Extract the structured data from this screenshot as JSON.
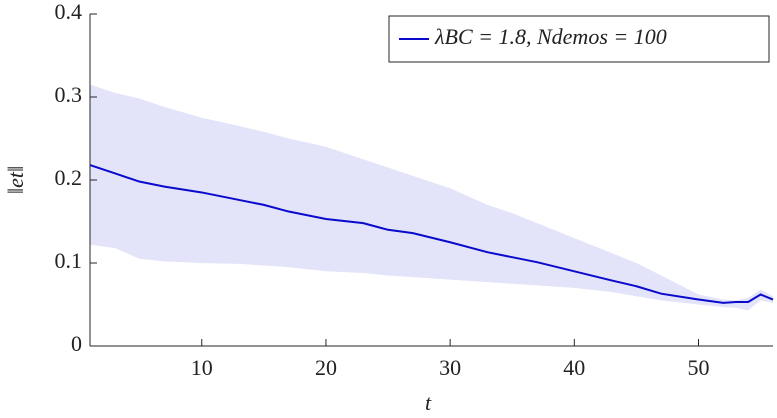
{
  "chart_data": {
    "type": "line",
    "x_label": "t",
    "y_label": "‖et‖",
    "x": [
      1,
      3,
      5,
      7,
      10,
      13,
      15,
      17,
      20,
      23,
      25,
      27,
      30,
      33,
      35,
      37,
      40,
      43,
      45,
      47,
      50,
      52,
      53,
      54,
      55,
      56
    ],
    "series": [
      {
        "name": "λBC = 1.8,  Ndemos = 100",
        "color": "#0a0acc",
        "band_color": "#e3e3fa",
        "values": [
          0.218,
          0.208,
          0.198,
          0.192,
          0.185,
          0.176,
          0.17,
          0.162,
          0.153,
          0.148,
          0.14,
          0.136,
          0.125,
          0.113,
          0.107,
          0.101,
          0.09,
          0.079,
          0.072,
          0.063,
          0.056,
          0.052,
          0.053,
          0.053,
          0.062,
          0.056
        ],
        "upper": [
          0.315,
          0.305,
          0.298,
          0.288,
          0.275,
          0.265,
          0.258,
          0.25,
          0.24,
          0.225,
          0.215,
          0.205,
          0.19,
          0.17,
          0.16,
          0.148,
          0.13,
          0.112,
          0.1,
          0.085,
          0.062,
          0.056,
          0.055,
          0.058,
          0.068,
          0.06
        ],
        "lower": [
          0.122,
          0.118,
          0.105,
          0.102,
          0.1,
          0.099,
          0.097,
          0.095,
          0.09,
          0.088,
          0.085,
          0.083,
          0.08,
          0.077,
          0.075,
          0.073,
          0.07,
          0.065,
          0.06,
          0.055,
          0.05,
          0.047,
          0.046,
          0.043,
          0.055,
          0.052
        ]
      }
    ],
    "xlim": [
      1,
      56
    ],
    "xticks": [
      10,
      20,
      30,
      40,
      50
    ],
    "ylim": [
      0,
      0.4
    ],
    "yticks": [
      0,
      0.1,
      0.2,
      0.3,
      0.4
    ],
    "legend": "upper right",
    "grid": false
  }
}
